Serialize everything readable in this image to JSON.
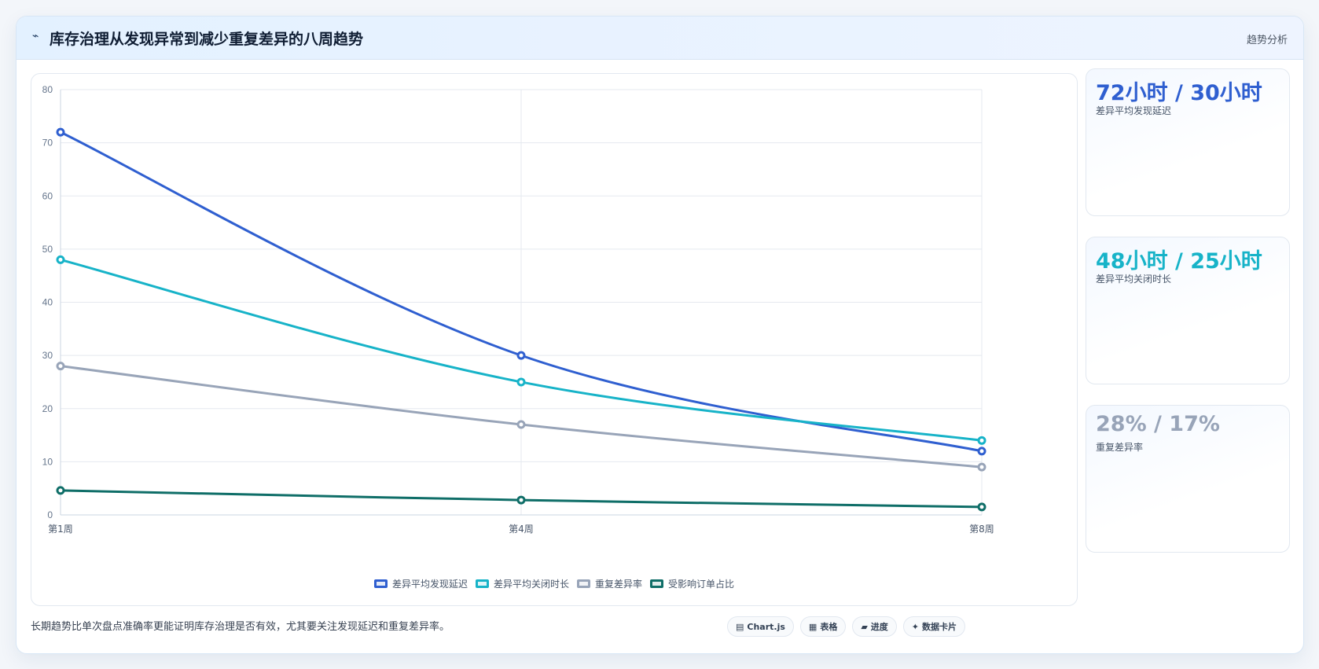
{
  "header": {
    "icon": "trend-line-icon",
    "icon_glyph": "⌁",
    "title": "库存治理从发现异常到减少重复差异的八周趋势",
    "tag": "趋势分析"
  },
  "chart_data": {
    "type": "line",
    "categories": [
      "第1周",
      "第4周",
      "第8周"
    ],
    "ylim": [
      0,
      80
    ],
    "yticks": [
      0,
      10,
      20,
      30,
      40,
      50,
      60,
      70,
      80
    ],
    "grid": true,
    "legend_position": "bottom",
    "series": [
      {
        "name": "差异平均发现延迟",
        "color": "#2f5fd0",
        "values": [
          72,
          30,
          12
        ]
      },
      {
        "name": "差异平均关闭时长",
        "color": "#17b3c8",
        "values": [
          48,
          25,
          14
        ]
      },
      {
        "name": "重复差异率",
        "color": "#98a4b8",
        "values": [
          28,
          17,
          9
        ]
      },
      {
        "name": "受影响订单占比",
        "color": "#0f6e68",
        "values": [
          4.6,
          2.8,
          1.5
        ]
      }
    ]
  },
  "kpis": [
    {
      "value": "72小时 / 30小时",
      "label": "差异平均发现延迟",
      "color": "#2f5fd0"
    },
    {
      "value": "48小时 / 25小时",
      "label": "差异平均关闭时长",
      "color": "#17b3c8"
    },
    {
      "value": "28% / 17%",
      "label": "重复差异率",
      "color": "#98a4b8"
    }
  ],
  "footer": {
    "text": "长期趋势比单次盘点准确率更能证明库存治理是否有效，尤其要关注发现延迟和重复差异率。",
    "chips": [
      {
        "icon": "chart-icon",
        "glyph": "▤",
        "label": "Chart.js"
      },
      {
        "icon": "table-icon",
        "glyph": "▦",
        "label": "表格"
      },
      {
        "icon": "progress-icon",
        "glyph": "▰",
        "label": "进度"
      },
      {
        "icon": "card-icon",
        "glyph": "✦",
        "label": "数据卡片"
      }
    ]
  }
}
